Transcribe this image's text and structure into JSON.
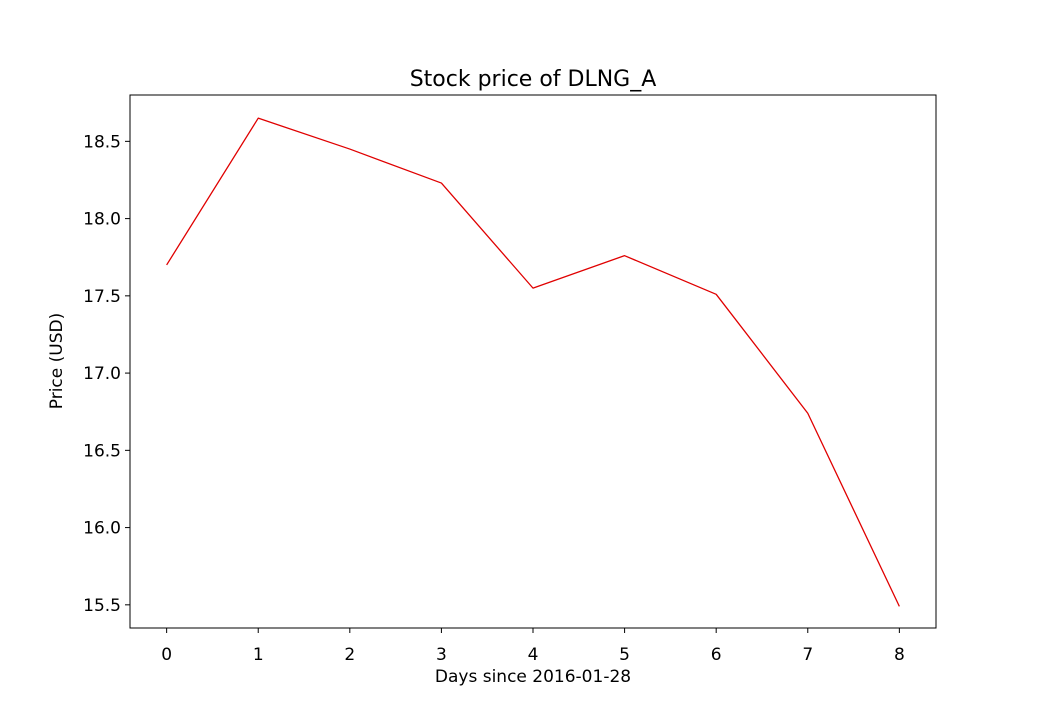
{
  "chart_data": {
    "type": "line",
    "title": "Stock price of DLNG_A",
    "xlabel": "Days since 2016-01-28",
    "ylabel": "Price (USD)",
    "x": [
      0,
      1,
      2,
      3,
      4,
      5,
      6,
      7,
      8
    ],
    "x_tick_labels": [
      "0",
      "1",
      "2",
      "3",
      "4",
      "5",
      "6",
      "7",
      "8"
    ],
    "y_ticks": [
      15.5,
      16.0,
      16.5,
      17.0,
      17.5,
      18.0,
      18.5
    ],
    "y_tick_labels": [
      "15.5",
      "16.0",
      "16.5",
      "17.0",
      "17.5",
      "18.0",
      "18.5"
    ],
    "series": [
      {
        "values": [
          17.7,
          18.65,
          18.45,
          18.23,
          17.55,
          17.76,
          17.51,
          16.74,
          15.49
        ],
        "color": "#e00000"
      }
    ],
    "xlim": [
      -0.4,
      8.4
    ],
    "ylim": [
      15.35,
      18.8
    ],
    "grid": false,
    "legend": "none"
  }
}
